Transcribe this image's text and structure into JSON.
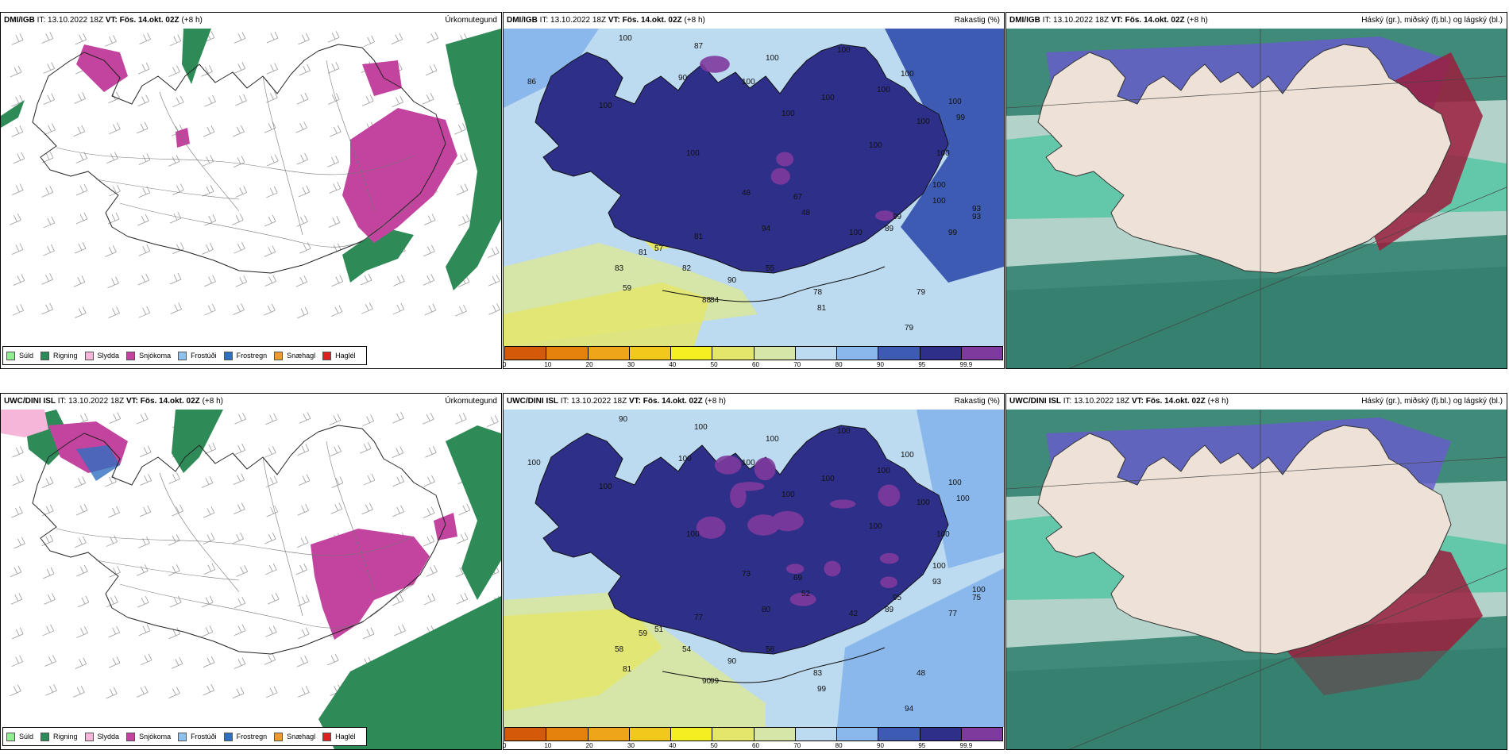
{
  "rows": [
    {
      "model": "DMI/IGB",
      "it_label": "IT:",
      "it_value": "13.10.2022 18Z",
      "vt_label": "VT:",
      "vt_value": "Fös. 14.okt. 02Z",
      "lead": "(+8 h)",
      "humidity_labels": [
        "100",
        "87",
        "86",
        "90",
        "100",
        "100",
        "100",
        "100",
        "100",
        "100",
        "100",
        "100",
        "100",
        "100",
        "93",
        "99",
        "100",
        "99",
        "100",
        "99",
        "93",
        "48",
        "48",
        "67",
        "57",
        "81",
        "82",
        "59",
        "83",
        "81",
        "84",
        "94",
        "55",
        "89",
        "90",
        "88",
        "78",
        "81",
        "79",
        "79",
        "100",
        "100",
        "100",
        "100"
      ]
    },
    {
      "model": "UWC/DINI ISL",
      "it_label": "IT:",
      "it_value": "13.10.2022 18Z",
      "vt_label": "VT:",
      "vt_value": "Fös. 14.okt. 02Z",
      "lead": "(+8 h)",
      "humidity_labels": [
        "90",
        "100",
        "100",
        "100",
        "100",
        "100",
        "100",
        "100",
        "100",
        "100",
        "100",
        "100",
        "100",
        "100",
        "100",
        "100",
        "100",
        "95",
        "93",
        "77",
        "75",
        "73",
        "52",
        "69",
        "51",
        "77",
        "54",
        "81",
        "58",
        "59",
        "99",
        "80",
        "58",
        "89",
        "90",
        "90",
        "83",
        "99",
        "48",
        "94",
        "42",
        "100",
        "100",
        "100"
      ]
    }
  ],
  "panel_titles": {
    "precip": "Úrkomutegund",
    "humidity": "Rakastig (%)",
    "clouds": "Háský (gr.), miðský (fj.bl.) og lágský (bl.)"
  },
  "precip_legend": [
    {
      "label": "Súld",
      "color": "#90ee90"
    },
    {
      "label": "Rigning",
      "color": "#2e8b57"
    },
    {
      "label": "Slydda",
      "color": "#f6b6d9"
    },
    {
      "label": "Snjókoma",
      "color": "#c2449e"
    },
    {
      "label": "Frostúði",
      "color": "#8ec0f0"
    },
    {
      "label": "Frostregn",
      "color": "#2f6fc0"
    },
    {
      "label": "Snæhagl",
      "color": "#f29a28"
    },
    {
      "label": "Haglél",
      "color": "#e02020"
    }
  ],
  "humidity_scale": {
    "ticks": [
      "0",
      "10",
      "20",
      "30",
      "40",
      "50",
      "60",
      "70",
      "80",
      "90",
      "95",
      "99.9"
    ],
    "colors": [
      "#d45a0a",
      "#e5820e",
      "#efa51a",
      "#f2c81c",
      "#f5ee20",
      "#e4e66c",
      "#d6e5a8",
      "#bcdaf0",
      "#8ab8ec",
      "#3d5bb2",
      "#2e2f88",
      "#7e3a9c"
    ]
  }
}
